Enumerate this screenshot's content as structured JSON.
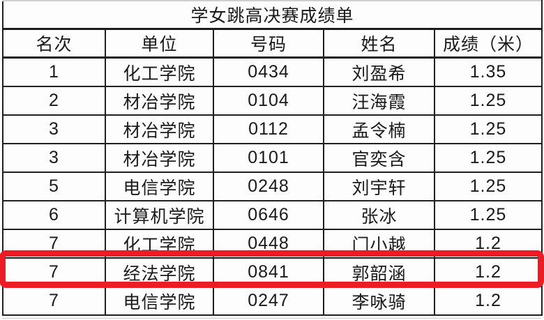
{
  "document": {
    "title": "学女跳高决赛成绩单"
  },
  "table": {
    "columns": [
      {
        "key": "rank",
        "label": "名次"
      },
      {
        "key": "unit",
        "label": "单位"
      },
      {
        "key": "number",
        "label": "号码"
      },
      {
        "key": "name",
        "label": "姓名"
      },
      {
        "key": "score",
        "label": "成绩（米）"
      }
    ],
    "rows": [
      {
        "rank": "1",
        "unit": "化工学院",
        "number": "0434",
        "name": "刘盈希",
        "score": "1.35"
      },
      {
        "rank": "2",
        "unit": "材冶学院",
        "number": "0104",
        "name": "汪海霞",
        "score": "1.25"
      },
      {
        "rank": "3",
        "unit": "材冶学院",
        "number": "0112",
        "name": "孟令楠",
        "score": "1.25"
      },
      {
        "rank": "3",
        "unit": "材冶学院",
        "number": "0101",
        "name": "官奕含",
        "score": "1.25"
      },
      {
        "rank": "5",
        "unit": "电信学院",
        "number": "0248",
        "name": "刘宇轩",
        "score": "1.25"
      },
      {
        "rank": "6",
        "unit": "计算机学院",
        "number": "0646",
        "name": "张冰",
        "score": "1.25"
      },
      {
        "rank": "7",
        "unit": "化工学院",
        "number": "0448",
        "name": "门小越",
        "score": "1.2"
      },
      {
        "rank": "7",
        "unit": "经法学院",
        "number": "0841",
        "name": "郭韶涵",
        "score": "1.2"
      },
      {
        "rank": "7",
        "unit": "电信学院",
        "number": "0247",
        "name": "李咏骑",
        "score": "1.2"
      }
    ]
  },
  "annotation": {
    "type": "red-rectangle",
    "color": "#ec1c24",
    "highlighted_row_index": 7,
    "highlighted_row_text": "7 经法学院 0841 郭韶涵 1.2"
  },
  "colors": {
    "border": "#1f1f1f",
    "text": "#1a1a1a",
    "background": "#fdfdfd",
    "annotation_red": "#ec1c24"
  }
}
